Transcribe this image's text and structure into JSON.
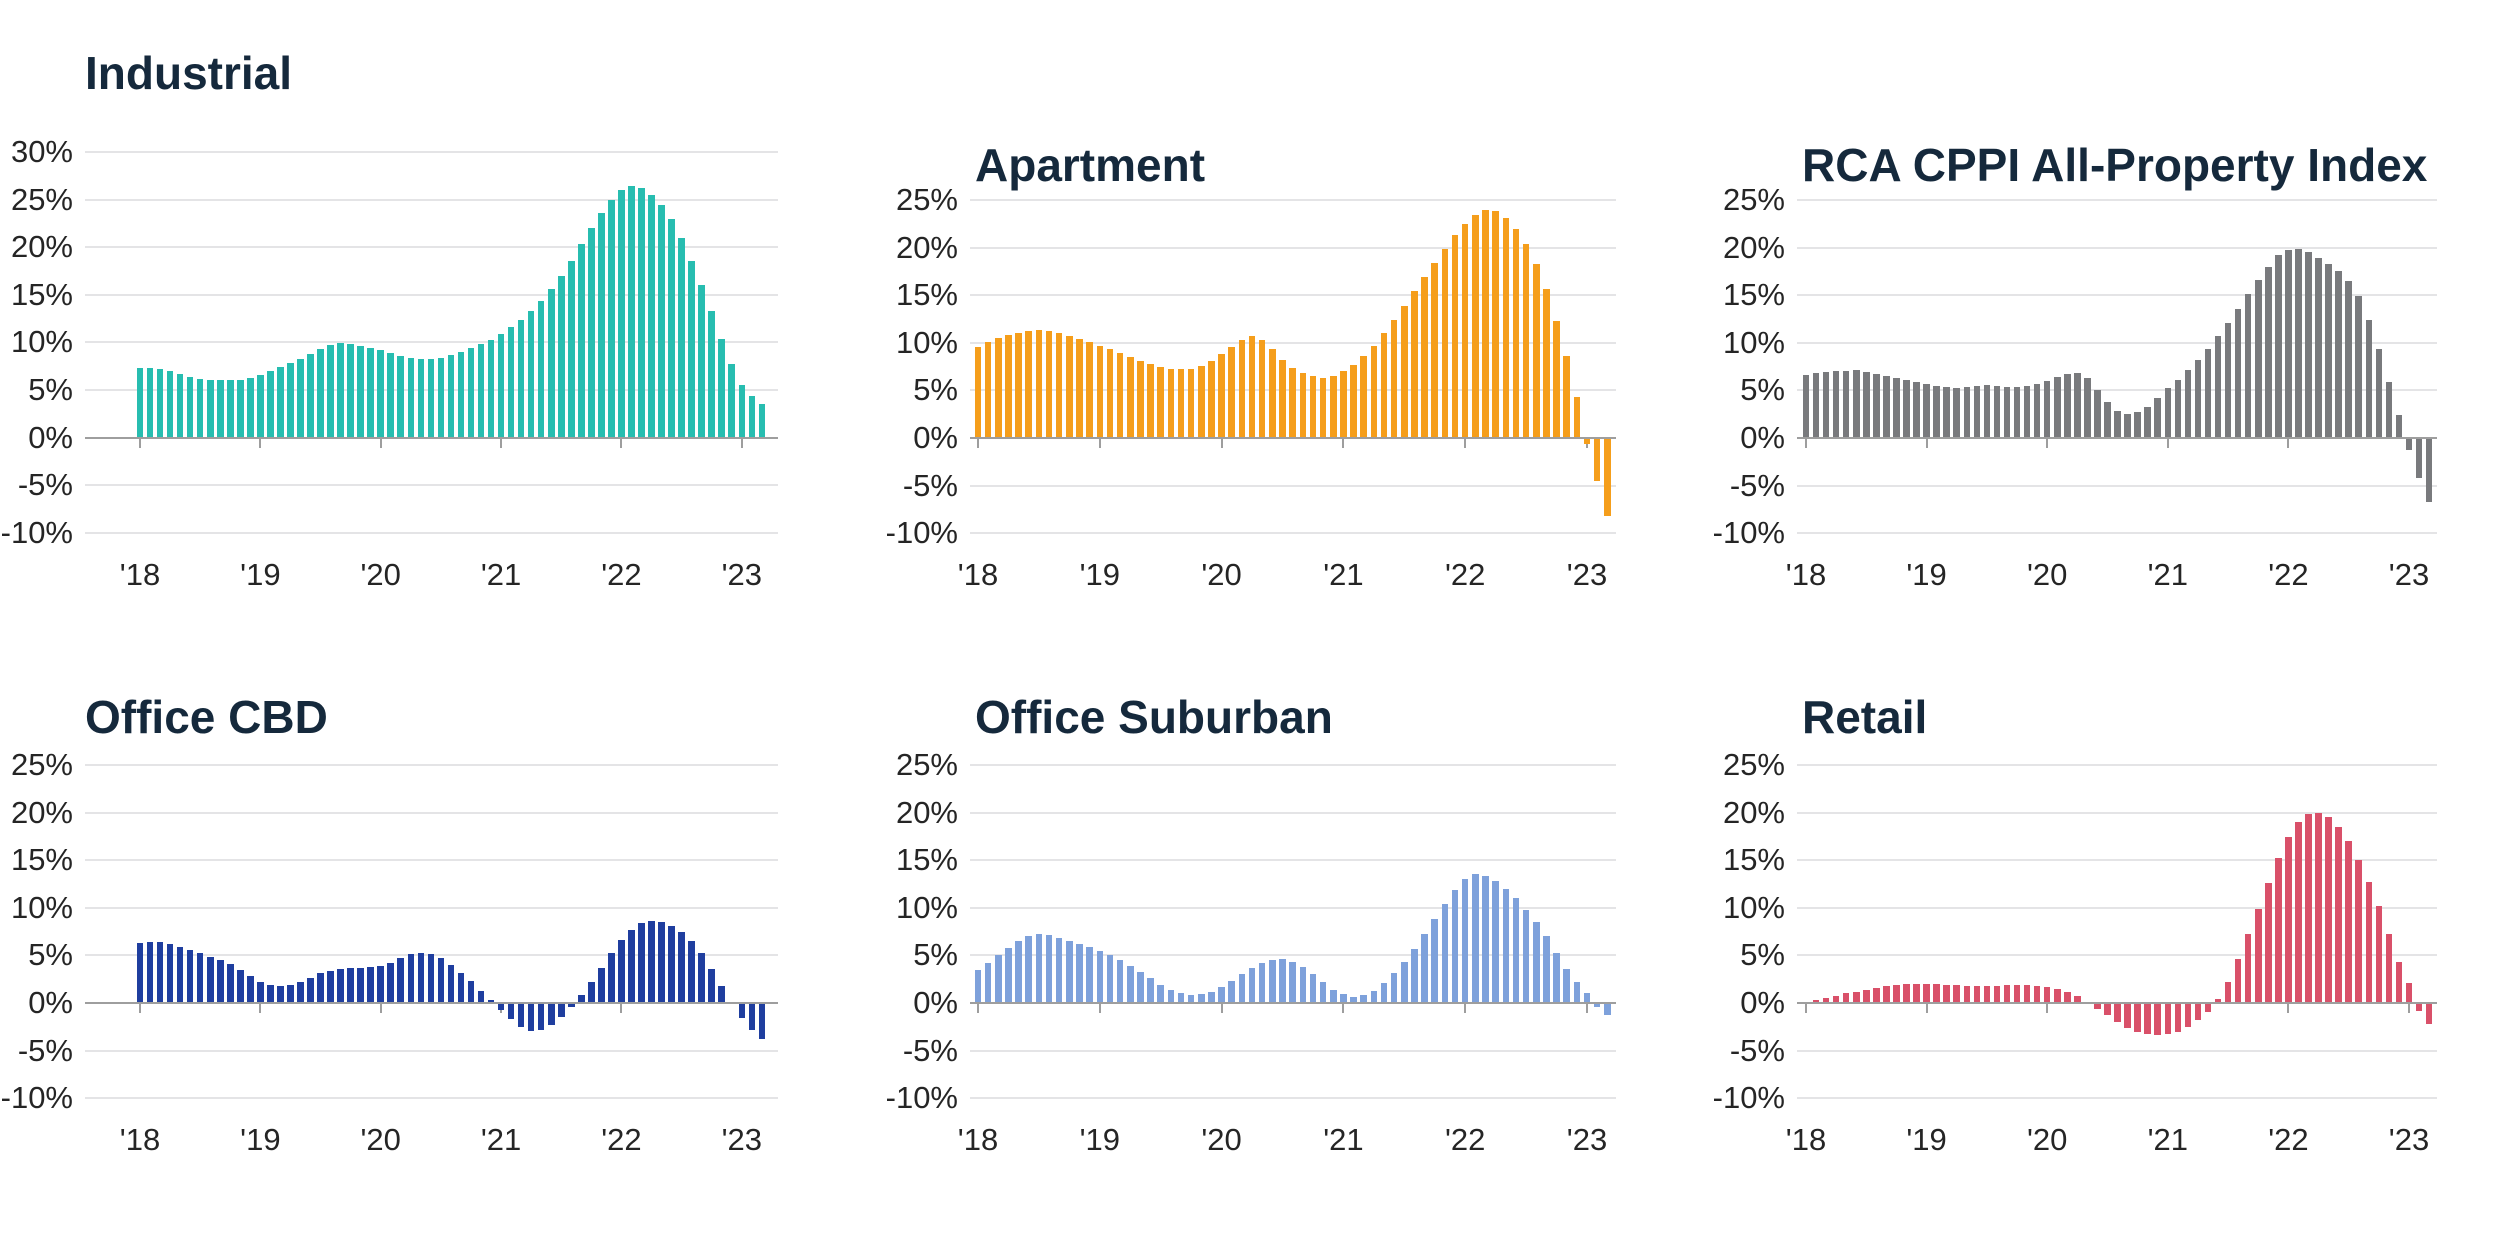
{
  "page": {
    "background": "#ffffff"
  },
  "chart_data": [
    {
      "id": "industrial",
      "type": "bar",
      "title": "Industrial",
      "color": "#27bdb0",
      "frequency": "monthly",
      "x_range": "Jan 2018 - Mar 2023",
      "grid": true,
      "legend": "none",
      "ylim": [
        -10,
        30
      ],
      "y_ticks": [
        "30%",
        "25%",
        "20%",
        "15%",
        "10%",
        "5%",
        "0%",
        "-5%",
        "-10%"
      ],
      "x_ticks": [
        "'18",
        "'19",
        "'20",
        "'21",
        "'22",
        "'23"
      ],
      "values": [
        7.3,
        7.3,
        7.2,
        7.0,
        6.7,
        6.4,
        6.2,
        6.1,
        6.0,
        6.0,
        6.1,
        6.3,
        6.6,
        7.0,
        7.4,
        7.8,
        8.3,
        8.8,
        9.3,
        9.7,
        9.9,
        9.8,
        9.6,
        9.4,
        9.2,
        8.9,
        8.6,
        8.4,
        8.3,
        8.3,
        8.4,
        8.7,
        9.0,
        9.4,
        9.8,
        10.3,
        10.9,
        11.6,
        12.4,
        13.3,
        14.4,
        15.6,
        17.0,
        18.6,
        20.3,
        22.0,
        23.6,
        25.0,
        26.0,
        26.4,
        26.2,
        25.5,
        24.4,
        23.0,
        21.0,
        18.6,
        16.0,
        13.3,
        10.4,
        7.7,
        5.5,
        4.4,
        3.5
      ]
    },
    {
      "id": "apartment",
      "type": "bar",
      "title": "Apartment",
      "color": "#f59e1b",
      "frequency": "monthly",
      "x_range": "Jan 2018 - Mar 2023",
      "grid": true,
      "legend": "none",
      "ylim": [
        -10,
        25
      ],
      "y_ticks": [
        "25%",
        "20%",
        "15%",
        "10%",
        "5%",
        "0%",
        "-5%",
        "-10%"
      ],
      "x_ticks": [
        "'18",
        "'19",
        "'20",
        "'21",
        "'22",
        "'23"
      ],
      "values": [
        9.6,
        10.1,
        10.5,
        10.8,
        11.0,
        11.2,
        11.3,
        11.2,
        11.0,
        10.7,
        10.4,
        10.1,
        9.7,
        9.3,
        8.9,
        8.5,
        8.1,
        7.8,
        7.5,
        7.3,
        7.2,
        7.3,
        7.6,
        8.1,
        8.8,
        9.6,
        10.3,
        10.7,
        10.3,
        9.3,
        8.2,
        7.4,
        6.8,
        6.5,
        6.3,
        6.5,
        7.0,
        7.7,
        8.6,
        9.7,
        11.0,
        12.4,
        13.9,
        15.4,
        16.9,
        18.4,
        19.9,
        21.3,
        22.5,
        23.4,
        24.0,
        23.8,
        23.1,
        22.0,
        20.4,
        18.3,
        15.6,
        12.3,
        8.6,
        4.3,
        -0.6,
        -4.5,
        -8.2
      ]
    },
    {
      "id": "rca-cppi-all-property",
      "type": "bar",
      "title": "RCA CPPI All-Property Index",
      "color": "#797a7d",
      "frequency": "monthly",
      "x_range": "Jan 2018 - Mar 2023",
      "grid": true,
      "legend": "none",
      "ylim": [
        -10,
        25
      ],
      "y_ticks": [
        "25%",
        "20%",
        "15%",
        "10%",
        "5%",
        "0%",
        "-5%",
        "-10%"
      ],
      "x_ticks": [
        "'18",
        "'19",
        "'20",
        "'21",
        "'22",
        "'23"
      ],
      "values": [
        6.6,
        6.8,
        6.9,
        7.0,
        7.0,
        7.1,
        6.9,
        6.7,
        6.5,
        6.3,
        6.1,
        5.9,
        5.7,
        5.5,
        5.4,
        5.3,
        5.4,
        5.5,
        5.6,
        5.5,
        5.4,
        5.4,
        5.5,
        5.7,
        6.0,
        6.4,
        6.7,
        6.8,
        6.3,
        5.0,
        3.8,
        2.8,
        2.5,
        2.7,
        3.3,
        4.2,
        5.2,
        6.1,
        7.1,
        8.2,
        9.4,
        10.7,
        12.1,
        13.6,
        15.1,
        16.6,
        18.0,
        19.2,
        19.8,
        19.9,
        19.5,
        18.9,
        18.3,
        17.5,
        16.5,
        14.9,
        12.4,
        9.4,
        5.9,
        2.4,
        -1.3,
        -4.2,
        -6.7
      ]
    },
    {
      "id": "office-cbd",
      "type": "bar",
      "title": "Office CBD",
      "color": "#1f3e9f",
      "frequency": "monthly",
      "x_range": "Jan 2018 - Mar 2023",
      "grid": true,
      "legend": "none",
      "ylim": [
        -10,
        25
      ],
      "y_ticks": [
        "25%",
        "20%",
        "15%",
        "10%",
        "5%",
        "0%",
        "-5%",
        "-10%"
      ],
      "x_ticks": [
        "'18",
        "'19",
        "'20",
        "'21",
        "'22",
        "'23"
      ],
      "values": [
        6.3,
        6.4,
        6.4,
        6.2,
        5.9,
        5.6,
        5.2,
        4.8,
        4.5,
        4.1,
        3.5,
        2.8,
        2.2,
        1.9,
        1.8,
        1.9,
        2.2,
        2.6,
        3.1,
        3.4,
        3.6,
        3.7,
        3.7,
        3.8,
        3.9,
        4.2,
        4.7,
        5.1,
        5.3,
        5.1,
        4.7,
        4.0,
        3.2,
        2.3,
        1.3,
        0.3,
        -0.7,
        -1.7,
        -2.5,
        -2.9,
        -2.8,
        -2.3,
        -1.5,
        -0.4,
        0.8,
        2.2,
        3.7,
        5.2,
        6.6,
        7.7,
        8.4,
        8.6,
        8.5,
        8.1,
        7.5,
        6.5,
        5.2,
        3.6,
        1.8,
        0.0,
        -1.6,
        -2.8,
        -3.8
      ]
    },
    {
      "id": "office-suburban",
      "type": "bar",
      "title": "Office Suburban",
      "color": "#7ea1db",
      "frequency": "monthly",
      "x_range": "Jan 2018 - Mar 2023",
      "grid": true,
      "legend": "none",
      "ylim": [
        -10,
        25
      ],
      "y_ticks": [
        "25%",
        "20%",
        "15%",
        "10%",
        "5%",
        "0%",
        "-5%",
        "-10%"
      ],
      "x_ticks": [
        "'18",
        "'19",
        "'20",
        "'21",
        "'22",
        "'23"
      ],
      "values": [
        3.5,
        4.2,
        5.0,
        5.8,
        6.5,
        7.0,
        7.2,
        7.1,
        6.8,
        6.5,
        6.2,
        5.9,
        5.5,
        5.0,
        4.5,
        3.9,
        3.3,
        2.6,
        1.9,
        1.4,
        1.0,
        0.8,
        0.9,
        1.2,
        1.7,
        2.3,
        3.0,
        3.7,
        4.2,
        4.5,
        4.6,
        4.3,
        3.8,
        3.0,
        2.2,
        1.4,
        0.9,
        0.6,
        0.8,
        1.3,
        2.1,
        3.1,
        4.3,
        5.7,
        7.2,
        8.8,
        10.4,
        11.9,
        13.0,
        13.5,
        13.3,
        12.8,
        12.0,
        11.0,
        9.8,
        8.5,
        7.0,
        5.2,
        3.6,
        2.2,
        1.0,
        -0.4,
        -1.3
      ]
    },
    {
      "id": "retail",
      "type": "bar",
      "title": "Retail",
      "color": "#d95069",
      "frequency": "monthly",
      "x_range": "Jan 2018 - Mar 2023",
      "grid": true,
      "legend": "none",
      "ylim": [
        -10,
        25
      ],
      "y_ticks": [
        "25%",
        "20%",
        "15%",
        "10%",
        "5%",
        "0%",
        "-5%",
        "-10%"
      ],
      "x_ticks": [
        "'18",
        "'19",
        "'20",
        "'21",
        "'22",
        "'23"
      ],
      "values": [
        0.1,
        0.3,
        0.5,
        0.7,
        1.0,
        1.2,
        1.4,
        1.6,
        1.8,
        1.9,
        2.0,
        2.0,
        2.0,
        2.0,
        1.9,
        1.9,
        1.8,
        1.8,
        1.8,
        1.8,
        1.9,
        1.9,
        1.9,
        1.8,
        1.7,
        1.5,
        1.2,
        0.7,
        0.1,
        -0.6,
        -1.3,
        -2.0,
        -2.6,
        -3.0,
        -3.3,
        -3.4,
        -3.3,
        -3.0,
        -2.5,
        -1.8,
        -0.9,
        0.4,
        2.2,
        4.6,
        7.2,
        9.9,
        12.6,
        15.2,
        17.4,
        19.0,
        19.9,
        20.0,
        19.5,
        18.5,
        17.0,
        15.0,
        12.7,
        10.2,
        7.2,
        4.3,
        2.1,
        -0.8,
        -2.2
      ]
    }
  ]
}
